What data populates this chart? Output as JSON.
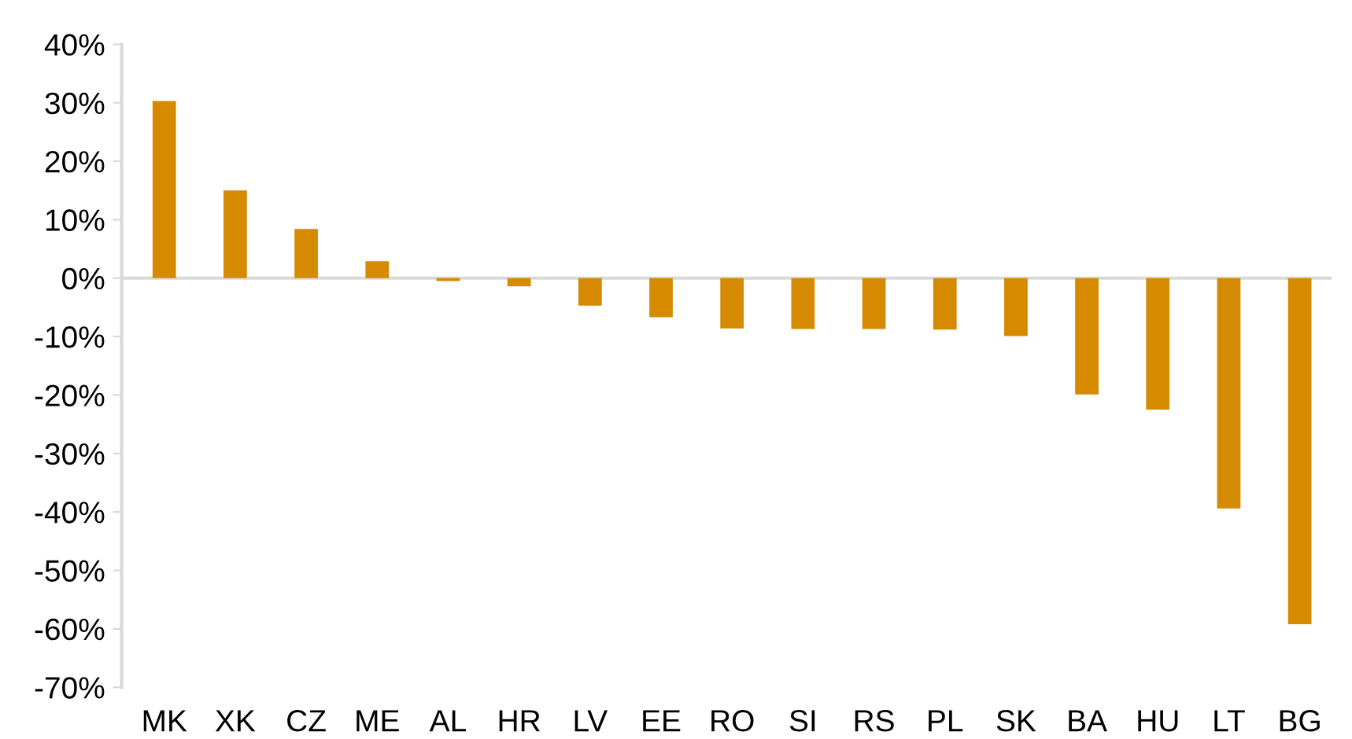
{
  "chart_data": {
    "type": "bar",
    "categories": [
      "MK",
      "XK",
      "CZ",
      "ME",
      "AL",
      "HR",
      "LV",
      "EE",
      "RO",
      "SI",
      "RS",
      "PL",
      "SK",
      "BA",
      "HU",
      "LT",
      "BG"
    ],
    "values": [
      30.3,
      15.0,
      8.4,
      2.9,
      -0.5,
      -1.4,
      -4.7,
      -6.7,
      -8.6,
      -8.7,
      -8.7,
      -8.8,
      -9.9,
      -19.9,
      -22.5,
      -39.4,
      -59.2
    ],
    "color": "#d68a00",
    "ylim": [
      -70,
      40
    ],
    "yticks": [
      {
        "value": -70,
        "label": "-70%"
      },
      {
        "value": -60,
        "label": "-60%"
      },
      {
        "value": -50,
        "label": "-50%"
      },
      {
        "value": -40,
        "label": "-40%"
      },
      {
        "value": -30,
        "label": "-30%"
      },
      {
        "value": -20,
        "label": "-20%"
      },
      {
        "value": -10,
        "label": "-10%"
      },
      {
        "value": 0,
        "label": "0%"
      },
      {
        "value": 10,
        "label": "10%"
      },
      {
        "value": 20,
        "label": "20%"
      },
      {
        "value": 30,
        "label": "30%"
      },
      {
        "value": 40,
        "label": "40%"
      }
    ],
    "legend": false
  }
}
